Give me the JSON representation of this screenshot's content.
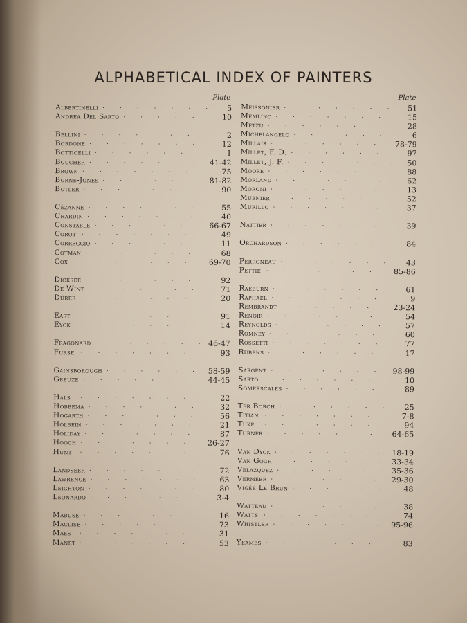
{
  "title": "ALPHABETICAL INDEX OF PAINTERS",
  "plate_label": "Plate",
  "left_groups": [
    [
      [
        "Albertinelli",
        "5"
      ],
      [
        "Andrea Del Sarto",
        "10"
      ]
    ],
    [
      [
        "Bellini",
        "2"
      ],
      [
        "Bordone",
        "12"
      ],
      [
        "Botticelli",
        "1"
      ],
      [
        "Boucher",
        "41-42"
      ],
      [
        "Brown",
        "75"
      ],
      [
        "Burne-Jones",
        "81-82"
      ],
      [
        "Butler",
        "90"
      ]
    ],
    [
      [
        "Cézanne",
        "55"
      ],
      [
        "Chardin",
        "40"
      ],
      [
        "Constable",
        "66-67"
      ],
      [
        "Corot",
        "49"
      ],
      [
        "Correggio",
        "11"
      ],
      [
        "Cotman",
        "68"
      ],
      [
        "Cox",
        "69-70"
      ]
    ],
    [
      [
        "Dicksee",
        "92"
      ],
      [
        "De Wint",
        "71"
      ],
      [
        "Dürer",
        "20"
      ]
    ],
    [
      [
        "East",
        "91"
      ],
      [
        "Eyck",
        "14"
      ]
    ],
    [
      [
        "Fragonard",
        "46-47"
      ],
      [
        "Furse",
        "93"
      ]
    ],
    [
      [
        "Gainsborough",
        "58-59"
      ],
      [
        "Greuze",
        "44-45"
      ]
    ],
    [
      [
        "Hals",
        "22"
      ],
      [
        "Hobbema",
        "32"
      ],
      [
        "Hogarth",
        "56"
      ],
      [
        "Holbein",
        "21"
      ],
      [
        "Holiday",
        "87"
      ],
      [
        "Hooch",
        "26-27"
      ],
      [
        "Hunt",
        "76"
      ]
    ],
    [
      [
        "Landseer",
        "72"
      ],
      [
        "Lawrence",
        "63"
      ],
      [
        "Leighton",
        "80"
      ],
      [
        "Leonardo",
        "3-4"
      ]
    ],
    [
      [
        "Mabuse",
        "16"
      ],
      [
        "Maclise",
        "73"
      ],
      [
        "Maes",
        "31"
      ],
      [
        "Manet",
        "53"
      ]
    ]
  ],
  "right_groups": [
    [
      [
        "Meissonier",
        "51"
      ],
      [
        "Memlinc",
        "15"
      ],
      [
        "Metzu",
        "28"
      ],
      [
        "Michelangelo",
        "6"
      ],
      [
        "Millais",
        "78-79"
      ],
      [
        "Millet, F. D.",
        "97"
      ],
      [
        "Millet, J. F.",
        "50"
      ],
      [
        "Moore",
        "88"
      ],
      [
        "Morland",
        "62"
      ],
      [
        "Moroni",
        "13"
      ],
      [
        "Muenier",
        "52"
      ],
      [
        "Murillo",
        "37"
      ]
    ],
    [
      [
        "Nattier",
        "39"
      ]
    ],
    [
      [
        "Orchardson",
        "84"
      ]
    ],
    [
      [
        "Perroneau",
        "43"
      ],
      [
        "Pettie",
        "85-86"
      ]
    ],
    [
      [
        "Raeburn",
        "61"
      ],
      [
        "Raphael",
        "9"
      ],
      [
        "Rembrandt",
        "23-24"
      ],
      [
        "Renoir",
        "54"
      ],
      [
        "Reynolds",
        "57"
      ],
      [
        "Romney",
        "60"
      ],
      [
        "Rossetti",
        "77"
      ],
      [
        "Rubens",
        "17"
      ]
    ],
    [
      [
        "Sargent",
        "98-99"
      ],
      [
        "Sarto",
        "10"
      ],
      [
        "Somerscales",
        "89"
      ]
    ],
    [
      [
        "Ter Borch",
        "25"
      ],
      [
        "Titian",
        "7-8"
      ],
      [
        "Tuke",
        "94"
      ],
      [
        "Turner",
        "64-65"
      ]
    ],
    [
      [
        "Van Dyck",
        "18-19"
      ],
      [
        "Van Gogh",
        "33-34"
      ],
      [
        "Velazquez",
        "35-36"
      ],
      [
        "Vermeer",
        "29-30"
      ],
      [
        "Vigée Le Brun",
        "48"
      ]
    ],
    [
      [
        "Watteau",
        "38"
      ],
      [
        "Watts",
        "74"
      ],
      [
        "Whistler",
        "95-96"
      ]
    ],
    [
      [
        "Yeames",
        "83"
      ]
    ]
  ]
}
